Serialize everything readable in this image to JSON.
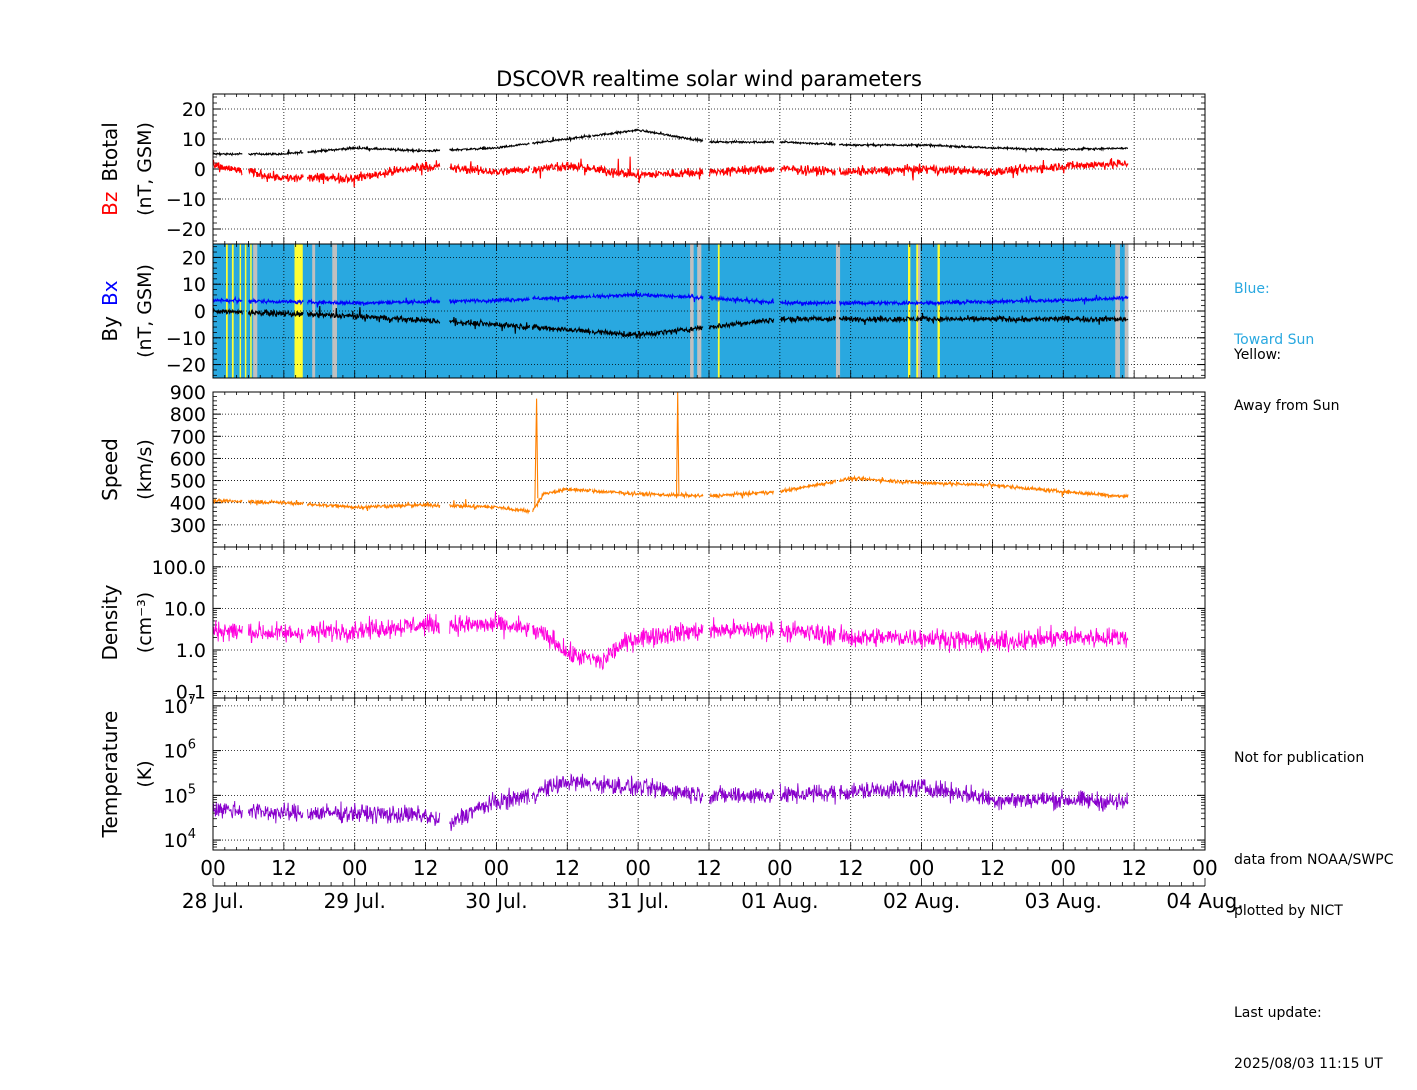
{
  "chart_data": [
    {
      "type": "line",
      "title": "DSCOVR realtime solar wind parameters",
      "panel": "magnetic-field-total",
      "ylabel_parts": [
        {
          "text": "Bz",
          "color": "#ff0000"
        },
        {
          "text": "Btotal",
          "color": "#000000"
        }
      ],
      "ylabel_units": "(nT, GSM)",
      "ylim": [
        -25,
        25
      ],
      "yticks": [
        20,
        10,
        0,
        -10,
        -20
      ],
      "ytick_labels": [
        "20",
        "10",
        "0",
        "−10",
        "−20"
      ],
      "series": [
        {
          "name": "Btotal",
          "color": "#000000",
          "x_hours": [
            0,
            12,
            24,
            36,
            48,
            60,
            72,
            84,
            96,
            108,
            120,
            132,
            144,
            156
          ],
          "values": [
            5,
            5,
            7,
            6,
            7,
            10,
            13,
            9,
            9,
            8,
            8,
            7,
            6.5,
            7
          ]
        },
        {
          "name": "Bz",
          "color": "#ff0000",
          "x_hours": [
            0,
            12,
            24,
            36,
            48,
            60,
            72,
            84,
            96,
            108,
            120,
            132,
            144,
            156
          ],
          "values": [
            1,
            -3,
            -3,
            1,
            -1,
            1,
            -2,
            -1,
            0,
            -1,
            0,
            -1,
            1,
            2
          ]
        }
      ]
    },
    {
      "type": "line",
      "panel": "magnetic-field-components",
      "ylabel_parts": [
        {
          "text": "By",
          "color": "#000000"
        },
        {
          "text": "Bx",
          "color": "#0000ff"
        }
      ],
      "ylabel_units": "(nT, GSM)",
      "ylim": [
        -25,
        25
      ],
      "yticks": [
        20,
        10,
        0,
        -10,
        -20
      ],
      "ytick_labels": [
        "20",
        "10",
        "0",
        "−10",
        "−20"
      ],
      "background": "sector polarity shading (blue toward Sun, yellow away from Sun, gray no data)",
      "series": [
        {
          "name": "Bx",
          "color": "#0000ff",
          "x_hours": [
            0,
            24,
            48,
            72,
            84,
            96,
            120,
            144,
            156
          ],
          "values": [
            4,
            3,
            4,
            6,
            5,
            3,
            3,
            4,
            5
          ]
        },
        {
          "name": "By",
          "color": "#000000",
          "x_hours": [
            0,
            24,
            48,
            72,
            84,
            96,
            120,
            144,
            156
          ],
          "values": [
            0,
            -2,
            -5,
            -9,
            -6,
            -3,
            -3,
            -3,
            -3
          ]
        }
      ]
    },
    {
      "type": "line",
      "panel": "speed",
      "ylabel": "Speed",
      "ylabel_units": "(km/s)",
      "ylim": [
        200,
        900
      ],
      "yticks": [
        900,
        800,
        700,
        600,
        500,
        400,
        300
      ],
      "ytick_labels": [
        "900",
        "800",
        "700",
        "600",
        "500",
        "400",
        "300"
      ],
      "series": [
        {
          "name": "Speed",
          "color": "#ff8000",
          "x_hours": [
            0,
            12,
            24,
            36,
            48,
            54,
            56,
            60,
            72,
            84,
            96,
            108,
            120,
            132,
            144,
            154
          ],
          "values": [
            410,
            400,
            380,
            390,
            380,
            360,
            440,
            460,
            440,
            430,
            450,
            510,
            490,
            480,
            450,
            430
          ]
        }
      ]
    },
    {
      "type": "line",
      "panel": "density",
      "ylabel": "Density",
      "ylabel_units": "(cm⁻³)",
      "yscale": "log",
      "ylim": [
        0.07,
        300
      ],
      "yticks": [
        100.0,
        10.0,
        1.0,
        0.1
      ],
      "ytick_labels": [
        "100.0",
        "10.0",
        "1.0",
        "0.1"
      ],
      "series": [
        {
          "name": "Density",
          "color": "#ff00dd",
          "x_hours": [
            0,
            12,
            24,
            36,
            48,
            54,
            60,
            66,
            72,
            84,
            96,
            108,
            120,
            132,
            144,
            154
          ],
          "values": [
            3,
            2.5,
            3,
            4,
            4,
            3,
            0.8,
            0.5,
            2,
            3,
            3,
            2,
            2,
            1.5,
            2,
            2
          ]
        }
      ]
    },
    {
      "type": "line",
      "panel": "temperature",
      "ylabel": "Temperature",
      "ylabel_units": "(K)",
      "yscale": "log",
      "ylim": [
        6000,
        15000000
      ],
      "yticks_exponents": [
        4,
        5,
        6,
        7
      ],
      "ytick_base": "10",
      "series": [
        {
          "name": "Temperature",
          "color": "#8800cc",
          "x_hours": [
            0,
            12,
            24,
            36,
            40,
            48,
            54,
            60,
            72,
            84,
            96,
            108,
            120,
            132,
            144,
            154
          ],
          "values": [
            50000,
            40000,
            40000,
            35000,
            20000,
            70000,
            100000,
            200000,
            150000,
            100000,
            100000,
            120000,
            150000,
            80000,
            80000,
            70000
          ]
        }
      ]
    }
  ],
  "x_axis": {
    "hour_tick_labels": [
      "00",
      "12",
      "00",
      "12",
      "00",
      "12",
      "00",
      "12",
      "00",
      "12",
      "00",
      "12",
      "00",
      "12",
      "00"
    ],
    "date_labels": [
      "28 Jul.",
      "29 Jul.",
      "30 Jul.",
      "31 Jul.",
      "01 Aug.",
      "02 Aug.",
      "03 Aug.",
      "04 Aug."
    ],
    "range_hours": [
      0,
      168
    ],
    "data_end_hours": 155
  },
  "sector_legend": {
    "blue_line1": "Blue:",
    "blue_line2": "Toward Sun",
    "yellow_line1": "Yellow:",
    "yellow_line2": "Away from Sun"
  },
  "footer": {
    "notice": "Not for publication",
    "source": "data from NOAA/SWPC",
    "plotter": "plotted by NICT",
    "update_label": "Last update:",
    "update_time": "2025/08/03 11:15 UT"
  },
  "colors": {
    "toward_sun": "#29a8e0",
    "away_from_sun": "#ffff33",
    "no_data": "#c0c0c0"
  }
}
